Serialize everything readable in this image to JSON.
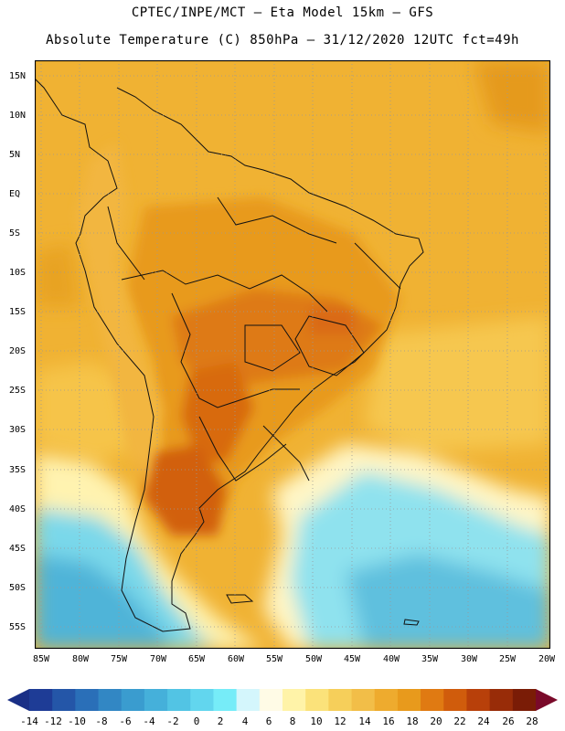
{
  "header": {
    "line1": "CPTEC/INPE/MCT –  Eta Model 15km – GFS",
    "line2": "Absolute Temperature (C) 850hPa – 31/12/2020 12UTC fct=49h"
  },
  "map": {
    "lat_labels": [
      "15N",
      "10N",
      "5N",
      "EQ",
      "5S",
      "10S",
      "15S",
      "20S",
      "25S",
      "30S",
      "35S",
      "40S",
      "45S",
      "50S",
      "55S"
    ],
    "lon_labels": [
      "85W",
      "80W",
      "75W",
      "70W",
      "65W",
      "60W",
      "55W",
      "50W",
      "45W",
      "40W",
      "35W",
      "30W",
      "25W",
      "20W"
    ]
  },
  "colorbar": {
    "labels": [
      "-14",
      "-12",
      "-10",
      "-8",
      "-6",
      "-4",
      "-2",
      "0",
      "2",
      "4",
      "6",
      "8",
      "10",
      "12",
      "14",
      "16",
      "18",
      "20",
      "22",
      "24",
      "26",
      "28"
    ],
    "colors": [
      "#1e3c96",
      "#2456a8",
      "#2a6fb8",
      "#3287c4",
      "#3a9ccf",
      "#45b0da",
      "#52c4e4",
      "#62d6ee",
      "#76ecf8",
      "#d4f6fc",
      "#fffbe6",
      "#fff3a8",
      "#fbe27a",
      "#f6cf5a",
      "#f2be48",
      "#eeab2e",
      "#e89a1c",
      "#e07a12",
      "#d05c0c",
      "#b8400a",
      "#982c08",
      "#7a1c06"
    ],
    "left_arrow_color": "#1a2f86",
    "right_arrow_color": "#7a0a2a"
  }
}
